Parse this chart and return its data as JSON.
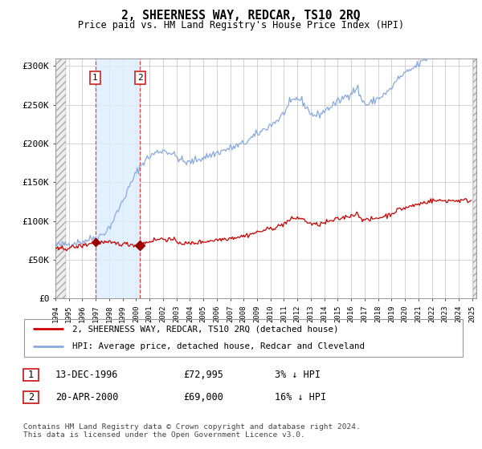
{
  "title": "2, SHEERNESS WAY, REDCAR, TS10 2RQ",
  "subtitle": "Price paid vs. HM Land Registry's House Price Index (HPI)",
  "ylim": [
    0,
    310000
  ],
  "yticks": [
    0,
    50000,
    100000,
    150000,
    200000,
    250000,
    300000
  ],
  "ytick_labels": [
    "£0",
    "£50K",
    "£100K",
    "£150K",
    "£200K",
    "£250K",
    "£300K"
  ],
  "sale1_date": 1996.96,
  "sale1_price": 72995,
  "sale2_date": 2000.3,
  "sale2_price": 69000,
  "hpi_line_color": "#88aadd",
  "sale_line_color": "#cc0000",
  "sale_marker_color": "#990000",
  "shade_color": "#ddeeff",
  "grid_color": "#cccccc",
  "legend_label_sale": "2, SHEERNESS WAY, REDCAR, TS10 2RQ (detached house)",
  "legend_label_hpi": "HPI: Average price, detached house, Redcar and Cleveland",
  "footer": "Contains HM Land Registry data © Crown copyright and database right 2024.\nThis data is licensed under the Open Government Licence v3.0.",
  "table_rows": [
    {
      "num": 1,
      "date": "13-DEC-1996",
      "price": "£72,995",
      "hpi": "3% ↓ HPI"
    },
    {
      "num": 2,
      "date": "20-APR-2000",
      "price": "£69,000",
      "hpi": "16% ↓ HPI"
    }
  ],
  "hpi_base": [
    68000,
    68500,
    69000,
    69200,
    69500,
    69800,
    70000,
    70200,
    70100,
    70000,
    70200,
    70500,
    70800,
    71000,
    71200,
    71500,
    71800,
    72000,
    72300,
    72500,
    72800,
    73000,
    73200,
    73500,
    73800,
    74200,
    74500,
    75000,
    75500,
    76000,
    76500,
    77000,
    77500,
    78000,
    78200,
    78500,
    79000,
    79500,
    80000,
    80800,
    81500,
    82000,
    83000,
    84000,
    85500,
    87000,
    88500,
    90000,
    92000,
    94000,
    96500,
    99000,
    102000,
    105000,
    108000,
    111000,
    114000,
    117000,
    120000,
    123000,
    126000,
    129000,
    132000,
    135000,
    138000,
    141000,
    144000,
    147000,
    150000,
    153000,
    156000,
    159000,
    162000,
    165000,
    167000,
    169000,
    171000,
    173000,
    175000,
    177000,
    178500,
    180000,
    181000,
    182000,
    183000,
    184000,
    185000,
    186000,
    187000,
    188000,
    188500,
    189000,
    189500,
    190000,
    190500,
    191000,
    191500,
    191000,
    190500,
    190000,
    189500,
    189000,
    188500,
    188000,
    187000,
    186000,
    185000,
    184000,
    183000,
    182000,
    181000,
    180000,
    179000,
    178000,
    177000,
    176500,
    176000,
    175500,
    175000,
    175500,
    176000,
    176500,
    177000,
    177500,
    178000,
    178500,
    179000,
    179500,
    180000,
    180500,
    181000,
    181500,
    182000,
    182500,
    183000,
    183500,
    184000,
    184500,
    185000,
    185500,
    186000,
    186500,
    187000,
    187500,
    188000,
    188500,
    189000,
    189500,
    190000,
    190500,
    191000,
    191500,
    192000,
    192500,
    193000,
    193500,
    194000,
    194500,
    195000,
    195500,
    196000,
    196500,
    197000,
    197500,
    198000,
    198500,
    199000,
    199500,
    200000,
    201000,
    202000,
    203000,
    204000,
    205000,
    206000,
    207000,
    208000,
    209000,
    210000,
    211000,
    212000,
    213000,
    214000,
    215000,
    216000,
    217000,
    218000,
    219000,
    220000,
    221000,
    222000,
    223000,
    224000,
    225000,
    226000,
    227000,
    228000,
    229000,
    230000,
    231000,
    232000,
    234000,
    236000,
    238000,
    240000,
    242000,
    244000,
    246000,
    248000,
    250000,
    252000,
    254000,
    255000,
    256000,
    257000,
    258000,
    258500,
    258000,
    257000,
    256000,
    255000,
    253000,
    251000,
    249000,
    247000,
    245000,
    243000,
    241000,
    239000,
    238000,
    237000,
    236500,
    236000,
    236500,
    237000,
    237500,
    238000,
    239000,
    240000,
    241000,
    242000,
    243000,
    244000,
    245000,
    246000,
    247000,
    248000,
    249000,
    250000,
    251000,
    252000,
    253000,
    254000,
    255000,
    256000,
    257000,
    258000,
    259000,
    260000,
    261000,
    262000,
    263000,
    264000,
    265000,
    266000,
    267000,
    268000,
    269000,
    270000,
    271000,
    272000,
    265000,
    260000,
    258000,
    256000,
    254000,
    252000,
    251000,
    250000,
    250500,
    251000,
    252000,
    253000,
    254000,
    255000,
    256000,
    257000,
    258000,
    258000,
    259000,
    260000,
    261000,
    262000,
    263000,
    264000,
    265000,
    266000,
    267000,
    268000,
    270000,
    272000,
    274000,
    276000,
    278000,
    280000,
    282000,
    284000,
    285000,
    286000,
    287000,
    288000,
    289000,
    290000,
    291000,
    292000,
    293000,
    294000,
    295000,
    296000,
    297000,
    298000,
    299000,
    300000,
    301000,
    302000,
    303000,
    304000,
    305000,
    306000,
    307000,
    308000,
    309000,
    310000,
    311000,
    312000,
    313000
  ]
}
